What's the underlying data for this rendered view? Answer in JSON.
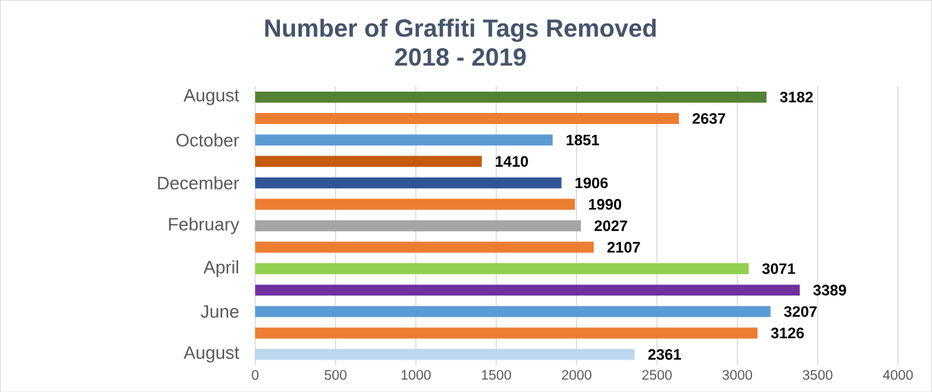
{
  "chart_data": {
    "type": "bar",
    "orientation": "horizontal",
    "title": "Number of Graffiti Tags Removed\n2018 - 2019",
    "categories": [
      "August",
      null,
      "October",
      null,
      "December",
      null,
      "February",
      null,
      "April",
      null,
      "June",
      null,
      "August"
    ],
    "values": [
      3182,
      2637,
      1851,
      1410,
      1906,
      1990,
      2027,
      2107,
      3071,
      3389,
      3207,
      3126,
      2361
    ],
    "colors": [
      "#548235",
      "#ed7d31",
      "#5b9bd5",
      "#c55a11",
      "#2f5597",
      "#ed7d31",
      "#a5a5a5",
      "#ed7d31",
      "#92d050",
      "#7030a0",
      "#5b9bd5",
      "#ed7d31",
      "#bdd7ee"
    ],
    "xlim": [
      0,
      4000
    ],
    "xticks": [
      0,
      500,
      1000,
      1500,
      2000,
      2500,
      3000,
      3500,
      4000
    ],
    "grid": "x",
    "data_labels": true
  }
}
